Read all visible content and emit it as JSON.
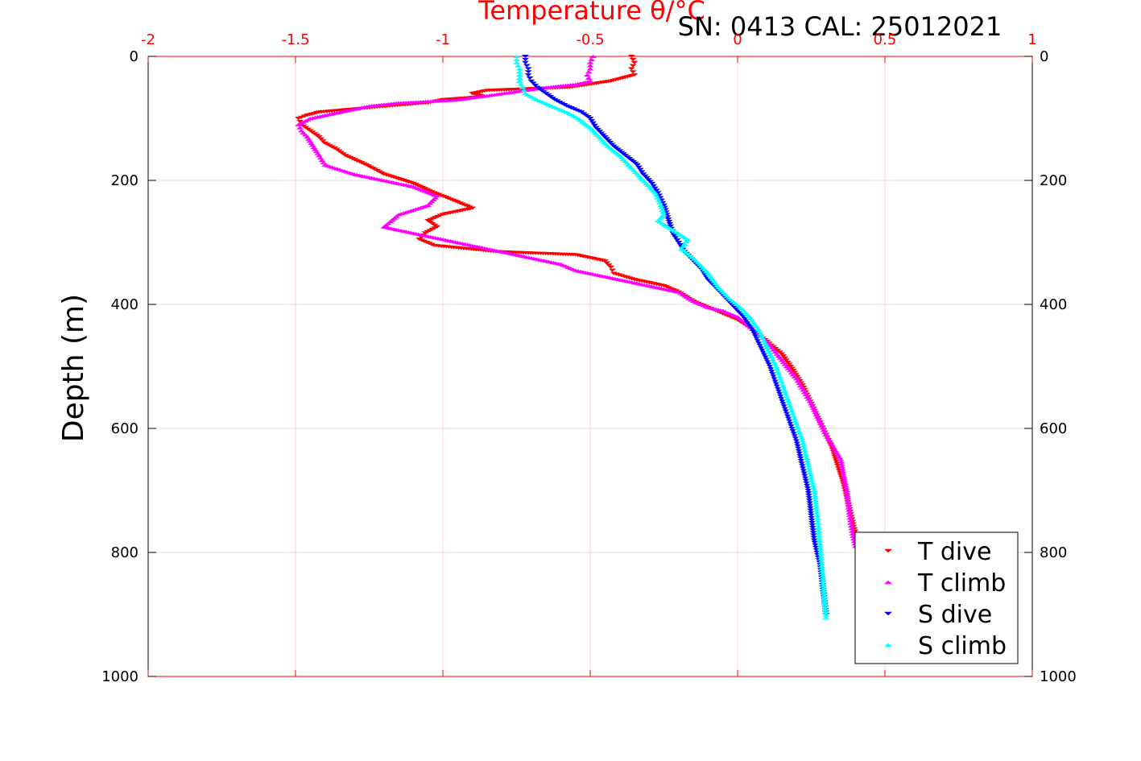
{
  "chart_data": {
    "type": "scatter",
    "title": "Temperature θ/°C",
    "title_color": "#ff0000",
    "subtitle": "SN: 0413  CAL: 25012021",
    "ylabel": "Depth (m)",
    "xlim": [
      -2,
      1
    ],
    "ylim": [
      0,
      1000
    ],
    "y_reversed": true,
    "x_ticks": [
      "-2",
      "-1.5",
      "-1",
      "-0.5",
      "0",
      "0.5",
      "1"
    ],
    "x_tick_values": [
      -2,
      -1.5,
      -1,
      -0.5,
      0,
      0.5,
      1
    ],
    "x_tick_color": "#ff0000",
    "y_ticks": [
      "0",
      "200",
      "400",
      "600",
      "800",
      "1000"
    ],
    "y_tick_values": [
      0,
      200,
      400,
      600,
      800,
      1000
    ],
    "grid": true,
    "legend_position": "bottom-right",
    "series": [
      {
        "name": "T dive",
        "color": "#ff0000",
        "marker": "triangle-down",
        "x": [
          -0.36,
          -0.35,
          -0.36,
          -0.35,
          -0.43,
          -0.57,
          -0.85,
          -0.9,
          -0.86,
          -1.0,
          -1.05,
          -1.18,
          -1.3,
          -1.42,
          -1.46,
          -1.49,
          -1.48,
          -1.45,
          -1.42,
          -1.4,
          -1.36,
          -1.33,
          -1.26,
          -1.2,
          -1.1,
          -1.03,
          -0.95,
          -0.9,
          -1.0,
          -1.05,
          -1.02,
          -1.06,
          -1.08,
          -1.03,
          -0.82,
          -0.55,
          -0.45,
          -0.43,
          -0.42,
          -0.35,
          -0.25,
          -0.2,
          -0.15,
          -0.1,
          -0.05,
          0.0,
          0.05,
          0.1,
          0.15,
          0.18,
          0.22,
          0.25,
          0.28,
          0.3,
          0.32,
          0.34,
          0.36,
          0.37,
          0.38,
          0.39,
          0.4,
          0.41
        ],
        "y": [
          0,
          10,
          20,
          30,
          40,
          50,
          55,
          60,
          65,
          70,
          75,
          80,
          85,
          90,
          95,
          100,
          110,
          120,
          130,
          140,
          150,
          160,
          175,
          190,
          205,
          220,
          235,
          245,
          255,
          265,
          275,
          285,
          295,
          305,
          315,
          320,
          330,
          340,
          350,
          360,
          370,
          380,
          395,
          405,
          415,
          425,
          440,
          460,
          480,
          500,
          530,
          560,
          590,
          610,
          630,
          660,
          690,
          710,
          730,
          750,
          770,
          790
        ]
      },
      {
        "name": "T climb",
        "color": "#ff00ff",
        "marker": "triangle-up",
        "x": [
          -0.49,
          -0.5,
          -0.5,
          -0.51,
          -0.5,
          -0.55,
          -0.65,
          -0.8,
          -0.95,
          -1.15,
          -1.25,
          -1.35,
          -1.45,
          -1.49,
          -1.48,
          -1.46,
          -1.42,
          -1.4,
          -1.3,
          -1.2,
          -1.1,
          -1.02,
          -1.05,
          -1.15,
          -1.2,
          -1.1,
          -1.0,
          -0.9,
          -0.8,
          -0.7,
          -0.6,
          -0.55,
          -0.5,
          -0.4,
          -0.3,
          -0.2,
          -0.15,
          -0.1,
          -0.05,
          0.0,
          0.05,
          0.1,
          0.15,
          0.2,
          0.25,
          0.3,
          0.35,
          0.37,
          0.38,
          0.39,
          0.4
        ],
        "y": [
          0,
          10,
          20,
          30,
          40,
          45,
          50,
          60,
          70,
          75,
          80,
          90,
          100,
          110,
          120,
          130,
          160,
          175,
          190,
          200,
          210,
          225,
          240,
          255,
          275,
          285,
          295,
          305,
          315,
          325,
          335,
          345,
          350,
          360,
          370,
          380,
          395,
          405,
          410,
          420,
          440,
          460,
          490,
          520,
          560,
          610,
          650,
          700,
          740,
          770,
          790
        ]
      },
      {
        "name": "S dive",
        "color": "#0000ff",
        "marker": "triangle-down",
        "x": [
          -0.72,
          -0.72,
          -0.71,
          -0.71,
          -0.7,
          -0.68,
          -0.65,
          -0.62,
          -0.58,
          -0.53,
          -0.5,
          -0.48,
          -0.45,
          -0.42,
          -0.38,
          -0.34,
          -0.32,
          -0.29,
          -0.27,
          -0.25,
          -0.24,
          -0.23,
          -0.22,
          -0.2,
          -0.18,
          -0.15,
          -0.12,
          -0.1,
          -0.07,
          -0.04,
          -0.01,
          0.02,
          0.05,
          0.08,
          0.11,
          0.14,
          0.17,
          0.2,
          0.22,
          0.24,
          0.25,
          0.26,
          0.28,
          0.29,
          0.3
        ],
        "y": [
          0,
          10,
          20,
          30,
          40,
          50,
          60,
          70,
          80,
          90,
          100,
          115,
          130,
          145,
          160,
          175,
          190,
          205,
          220,
          240,
          255,
          270,
          285,
          300,
          315,
          330,
          345,
          360,
          375,
          390,
          405,
          420,
          440,
          470,
          500,
          540,
          580,
          620,
          660,
          700,
          740,
          780,
          820,
          860,
          900
        ]
      },
      {
        "name": "S climb",
        "color": "#00ffff",
        "marker": "triangle-up",
        "x": [
          -0.75,
          -0.75,
          -0.74,
          -0.74,
          -0.74,
          -0.73,
          -0.72,
          -0.68,
          -0.63,
          -0.58,
          -0.54,
          -0.5,
          -0.47,
          -0.44,
          -0.4,
          -0.37,
          -0.34,
          -0.31,
          -0.28,
          -0.26,
          -0.25,
          -0.27,
          -0.22,
          -0.17,
          -0.19,
          -0.14,
          -0.1,
          -0.07,
          -0.03,
          0.01,
          0.04,
          0.07,
          0.1,
          0.13,
          0.16,
          0.19,
          0.22,
          0.24,
          0.26,
          0.27,
          0.28,
          0.29,
          0.3
        ],
        "y": [
          0,
          10,
          20,
          30,
          40,
          50,
          60,
          70,
          80,
          90,
          100,
          115,
          130,
          145,
          160,
          175,
          190,
          205,
          220,
          240,
          255,
          265,
          280,
          295,
          310,
          330,
          350,
          370,
          390,
          405,
          420,
          440,
          470,
          500,
          540,
          580,
          620,
          660,
          700,
          740,
          790,
          850,
          905
        ]
      }
    ]
  }
}
